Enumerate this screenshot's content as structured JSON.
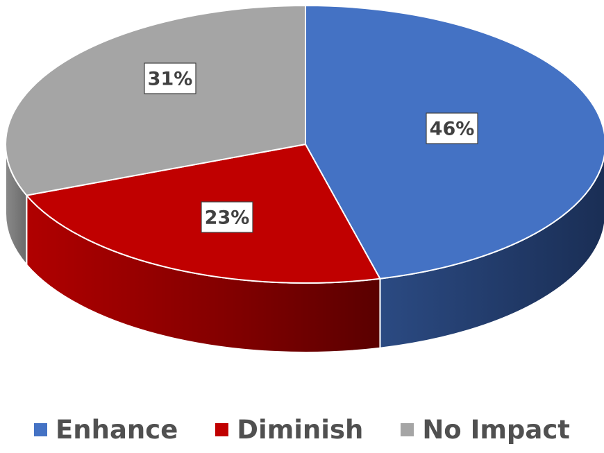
{
  "chart_data": {
    "type": "pie",
    "style": "3d",
    "categories": [
      "Enhance",
      "Diminish",
      "No Impact"
    ],
    "values": [
      46,
      23,
      31
    ],
    "data_labels": [
      "46%",
      "23%",
      "31%"
    ],
    "colors": [
      "#4472C4",
      "#C00000",
      "#A5A5A5"
    ],
    "legend": {
      "position": "bottom",
      "entries": [
        "Enhance",
        "Diminish",
        "No Impact"
      ]
    }
  }
}
